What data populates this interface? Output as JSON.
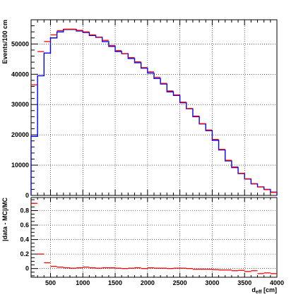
{
  "chart_data": [
    {
      "type": "line",
      "xlabel_main": "d",
      "xlabel_sub": "eff",
      "xlabel_unit": " [cm]",
      "ylabel": "Events/100 cm",
      "xlim": [
        200,
        4000
      ],
      "ylim": [
        0,
        58000
      ],
      "grid": true,
      "yticks": [
        0,
        10000,
        20000,
        30000,
        40000,
        50000
      ],
      "x": [
        250,
        350,
        450,
        550,
        650,
        750,
        850,
        950,
        1050,
        1150,
        1250,
        1350,
        1450,
        1550,
        1650,
        1750,
        1850,
        1950,
        2050,
        2150,
        2250,
        2350,
        2450,
        2550,
        2650,
        2750,
        2850,
        2950,
        3050,
        3150,
        3250,
        3350,
        3450,
        3550,
        3650,
        3750,
        3850,
        3950
      ],
      "series": [
        {
          "color": "#0000ff",
          "style": "histogram",
          "values": [
            19500,
            39500,
            47000,
            52000,
            54000,
            54800,
            54800,
            54300,
            53800,
            52800,
            52200,
            50800,
            49200,
            47500,
            46800,
            45200,
            43800,
            42000,
            40400,
            38600,
            36800,
            34200,
            33000,
            30600,
            28600,
            26000,
            23600,
            21400,
            18200,
            15000,
            11400,
            9200,
            7200,
            5400,
            3800,
            2800,
            2000,
            1100
          ]
        },
        {
          "color": "#ff0000",
          "style": "points",
          "values": [
            36500,
            47500,
            50800,
            53000,
            54400,
            54900,
            54900,
            54500,
            54000,
            53000,
            52300,
            51200,
            49500,
            47800,
            46800,
            45500,
            44100,
            42200,
            40800,
            39000,
            37000,
            34500,
            33200,
            30800,
            28700,
            26200,
            23700,
            21600,
            18500,
            15200,
            11600,
            9400,
            7300,
            5500,
            3900,
            2800,
            1900,
            1000
          ]
        }
      ]
    },
    {
      "type": "scatter",
      "xlabel_main": "d",
      "xlabel_sub": "eff",
      "xlabel_unit": " [cm]",
      "ylabel": "|data - MC|/MC",
      "xlim": [
        200,
        4000
      ],
      "ylim": [
        -0.12,
        0.98
      ],
      "grid": true,
      "xticks": [
        500,
        1000,
        1500,
        2000,
        2500,
        3000,
        3500,
        4000
      ],
      "yticks": [
        0,
        0.2,
        0.4,
        0.6,
        0.8
      ],
      "ytick_labels": [
        "0",
        "0.2",
        "0.4",
        "0.6",
        "0.8"
      ],
      "x": [
        250,
        350,
        450,
        550,
        650,
        750,
        850,
        950,
        1050,
        1150,
        1250,
        1350,
        1450,
        1550,
        1650,
        1750,
        1850,
        1950,
        2050,
        2150,
        2250,
        2350,
        2450,
        2550,
        2650,
        2750,
        2850,
        2950,
        3050,
        3150,
        3250,
        3350,
        3450,
        3550,
        3650,
        3750,
        3850,
        3950
      ],
      "series": [
        {
          "color": "#ff0000",
          "values": [
            0.9,
            0.2,
            0.08,
            0.03,
            0.02,
            0.01,
            0.005,
            0.01,
            0.02,
            0.01,
            0.005,
            0.01,
            0.01,
            0.005,
            0.0,
            0.005,
            0.01,
            0.0,
            0.01,
            0.005,
            0.005,
            0.0,
            0.005,
            0.005,
            0.0,
            -0.01,
            -0.01,
            -0.01,
            -0.015,
            -0.02,
            -0.02,
            -0.03,
            -0.025,
            -0.04,
            -0.03,
            -0.07,
            -0.06,
            -0.07
          ]
        }
      ]
    }
  ]
}
